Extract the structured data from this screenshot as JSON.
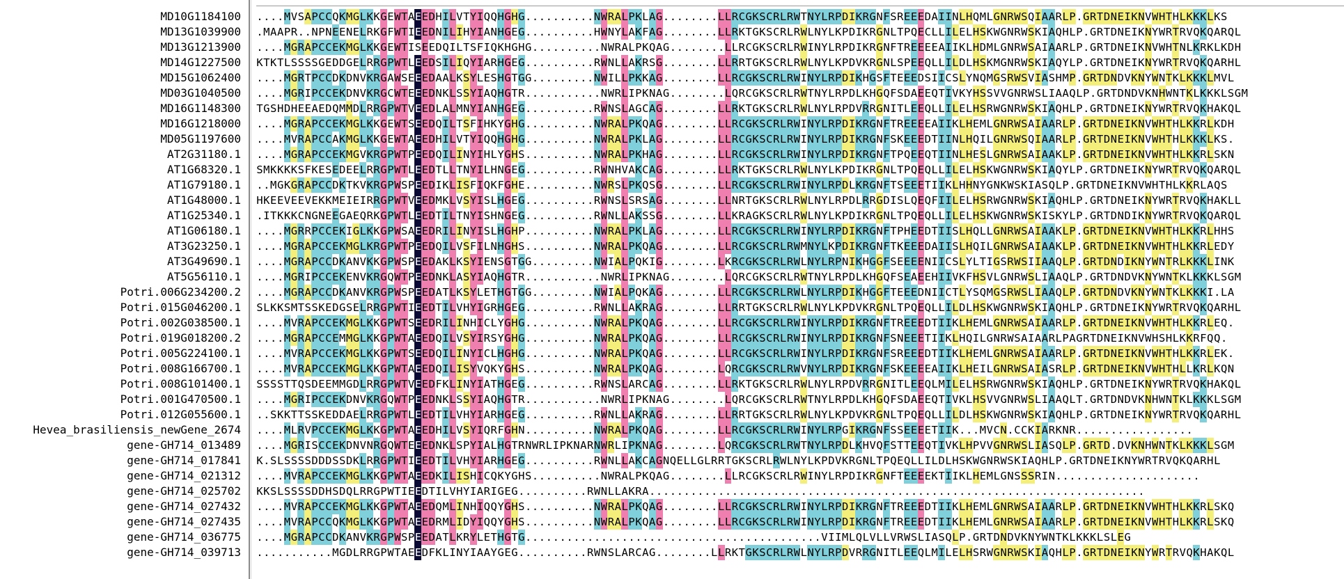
{
  "window": {
    "title": ""
  },
  "sequences": [
    {
      "name": "MD10G1184100",
      "seq": "....MVSAPCCQKMGLKKGEWTAEEDHILVTYIQQHGHG..........NWRALPKLAG........LLRCGKSCRLRWTNYLRPDIKRGNFSREEEDAIINLHQMLGNRWSQIAARLP.GRTDNEIKNVWHTHLKKKLKS"
    },
    {
      "name": "MD13G1039900",
      "seq": ".MAAPR..NPNEENELRKGFWTIEEDNILIHYIANHGEG..........HWNYLAKFAG........LLRKTGKSCRLRWLNYLKPDIKRGNLTPQECLLILELHSKWGNRWSKIAQHLP.GRTDNEIKNYWRTRVQKQARQL"
    },
    {
      "name": "MD13G1213900",
      "seq": "....MGRAPCCEKMGLKKGEWTISEEDQILTSFIQKHGHG..........NWRALPKQAG........LLRCGKSCRLRWINYLRPDIKRGNFTREEEEAIIKLHDMLGNRWSAIAARLP.GRTDNEIKNVWHTNLKRKLKDH"
    },
    {
      "name": "MD14G1227500",
      "seq": "KTKTLSSSSGEDDGELRRGPWTLEEDSILIQYIARHGEG..........RWNLLAKRSG........LLRRTGKSCRLRWLNYLKPDVKRGNLSPEEQLLILDLHSKMGNRWSKIAQYLP.GRTDNEIKNYWRTRVQKQARHL"
    },
    {
      "name": "MD15G1062400",
      "seq": "....MGRTPCCDKDNVKRGAWSEEEDAALKSYLESHGTGG.........NWILLPKKAG........LLRCGKSCRLRWINYLRPDIKHGSFTEEEDSIICSLYNQMGSRWSVIASHMP.GRTDNDVKNYWNTKLKKKLMVL"
    },
    {
      "name": "MD03G1040500",
      "seq": "....MGRIPCCEKDNVKRGCWTEEEDNKLSSYIAQHGTR...........NWRLIPKNAG........LQRCGKSCRLRWTNYLRPDLKHGQFSDAEEQTIVKYHSSVVGNRWSLIAAQLP.GRTDNDVKNHWNTKLKKKLSGM"
    },
    {
      "name": "MD16G1148300",
      "seq": "TGSHDHEEAEDQMMDLRRGPWTVEEDLALMNYIANHGEG..........RWNSLAGCAG........LLRKTGKSCRLRWLNYLRPDVRRGNITLEEQLLILELHSRWGNRWSKIAQHLP.GRTDNEIKNYWRTRVQKHAKQL"
    },
    {
      "name": "MD16G1218000",
      "seq": "....MGRAPCCEKMGLKKGEWTSEEDQILTSFIHKYGHG..........NWRALPKQAG........LLRCGKSCRLRWINYLRPDIKRGNFTREEEEAIIKLHEMLGNRWSAIAARLP.GRTDNEIKNVWHTHLKKRLKDH"
    },
    {
      "name": "MD05G1197600",
      "seq": "....MVRAPCCAKMGLKKGEWTAEEDHILVTYIQQHGHG..........NWRALPKLAG........LLRCGKSCRLRWINYLRPDIKRGNFSKEEEDTIINLHQILGNRWSQIAARLP.GRTDNEIKNVWHTHLKKKLKS."
    },
    {
      "name": "AT2G31180.1",
      "seq": "....MGRAPCCEKMGVKRGPWTPEEDQILINYIHLYGHS..........NWRALPKHAG........LLRCGKSCRLRWINYLRPDIKRGNFTPQEEQTIINLHESLGNRWSAIAAKLP.GRTDNEIKNVWHTHLKKRLSKN"
    },
    {
      "name": "AT1G68320.1",
      "seq": "SMKKKKSFKESEDEELRRGPWTLEEDTLLTNYILHNGEG..........RWNHVAKCAG........LLRKTGKSCRLRWLNYLKPDIKRGNLTPQEQLLILELHSKWGNRWSKIAQYLP.GRTDNEIKNYWRTRVQKQARQL"
    },
    {
      "name": "AT1G79180.1",
      "seq": "..MGKGRAPCCDKTKVKRGPWSPEEDIKLISFIQKFGHE..........NWRSLPKQSG........LLRCGKSCRLRWINYLRPDLKRGNFTSEEETIIKLHHNYGNKWSKIASQLP.GRTDNEIKNVWHTHLKKRLAQS"
    },
    {
      "name": "AT1G48000.1",
      "seq": "HKEEVEEVEKKMEIEIRRGPWTVEEDMKLVSYISLHGEG..........RWNSLSRSAG........LLNRTGKSCRLRWLNYLRPDLRRGDISLQEQFIILELHSRWGNRWSKIAQHLP.GRTDNEIKNYWRTRVQKHAKLL"
    },
    {
      "name": "AT1G25340.1",
      "seq": ".ITKKKCNGNEEGAEQRKGPWTLEEDTILTNYISHNGEG..........RWNLLAKSSG........LLKRAGKSCRLRWLNYLKPDIKRGNLTPQEQLLILELHSKWGNRWSKISKYLP.GRTDNDIKNYWRTRVQKQARQL"
    },
    {
      "name": "AT1G06180.1",
      "seq": "....MGRRPCCEKIGLKKGPWSAEEDRILINYISLHGHP..........NWRALPKLAG........LLRCGKSCRLRWINYLRPDIKRGNFTPHEEDTIISLHQLLGNRWSAIAAKLP.GRTDNEIKNVWHTHLKKRLHHS"
    },
    {
      "name": "AT3G23250.1",
      "seq": "....MGRAPCCEKMGLKRGPWTPEEDQILVSFILNHGHS..........NWRALPKQAG........LLRCGKSCRLRWMNYLKPDIKRGNFTKEEEDAIISLHQILGNRWSAIAAKLP.GRTDNEIKNVWHTHLKKRLEDY"
    },
    {
      "name": "AT3G49690.1",
      "seq": "....MGRAPCCDKANVKKGPWSPEEDAKLKSYIENSGTGG.........NWIALPQKIG........LKRCGKSCRLRWLNYLRPNIKHGGFSEEEENIICSLYLTIGSRWSIIAAQLP.GRTDNDIKNYWNTRLKKKLINK"
    },
    {
      "name": "AT5G56110.1",
      "seq": "....MGRIPCCEKENVKRGQWTPEEDNKLASYIAQHGTR...........NWRLIPKNAG........LQRCGKSCRLRWTNYLRPDLKHGQFSEAEEHIIVKFHSVLGNRWSLIAAQLP.GRTDNDVKNYWNTKLKKKLSGM"
    },
    {
      "name": "Potri.006G234200.2",
      "seq": "....MGRAPCCDKANVKRGPWSPEEDATLKSYLETHGTGG.........NWIALPQKAG........LLRCGKSCRLRWLNYLRPDIKHGGFTEEEDNIICTLYSQMGSRWSLIAAQLP.GRTDNDVKNYWNTKLKKKI.LA"
    },
    {
      "name": "Potri.015G046200.1",
      "seq": "SLKKSMTSSKEDGSELRRGPWTIEEDTILVHYIGRHGEG..........RWNLLAKRAG........LLRRTGKSCRLRWLNYLKPDVKRGNLTPQEQLLILDLHSKWGNRWSKIAQHLP.GRTDNEIKNYWRTRVQKQARHL"
    },
    {
      "name": "Potri.002G038500.1",
      "seq": "....MVRAPCCEKMGLKKGPWTSEEDRILINHICLYGHG..........NWRALPKQAG........LLRCGKSCRLRWINYLRPDIKRGNFTREEEDTIIKLHEMLGNRWSAIAARLP.GRTDNEIKNVWHTHLKKRLEQ."
    },
    {
      "name": "Potri.019G018200.2",
      "seq": "....MGRAPCCEMMGLKKGPWTAEEDQILVSYIRSYGHG..........NWRALPKQAG........LLRCGKSCRLRWINYLRPDIKRGNFSNEEETIIKLHQILGNRWSAIAARLPAGRTDNEIKNVWHSHLKKRFQQ."
    },
    {
      "name": "Potri.005G224100.1",
      "seq": "....MVRAPCCEKMGLKKGPWTSEEDQILINYICLHGHG..........NWRALPKQAG........LLRCGKSCRLRWINYLRPDIKRGNFSREEEDTIIKLHEMLGNRWSAIAARLP.GRTDNEIKNVWHTHLKKRLEK."
    },
    {
      "name": "Potri.008G166700.1",
      "seq": "....MVRAPCCEKMGLKKGPWTAEEDQILISYVQKYGHS..........NWRALPKQAG........LQRCGKSCRLRWVNYLRPDIKRGNFSKEEEEAIIKLHEILGNRWSAIASRLP.GRTDNEIKNVWHTHLLKRLKQN"
    },
    {
      "name": "Potri.008G101400.1",
      "seq": "SSSSTTQSDEEMMGDLRRGPWTVEEDFKLINYIATHGEG..........RWNSLARCAG........LLRKTGKSCRLRWLNYLRPDVRRGNITLEEQLMILELHSRWGNRWSKIAQHLP.GRTDNEIKNYWRTRVQKHAKQL"
    },
    {
      "name": "Potri.001G470500.1",
      "seq": "....MGRIPCCEKDNVKRGQWTPEEDNKLSSYIAQHGTR...........NWRLIPKNAG........LQRCGKSCRLRWTNYLRPDLKHGQFSDAEEQTIVKLHSVVGNRWSLIAAQLT.GRTDNDVKNHWNTKLKKKLSGM"
    },
    {
      "name": "Potri.012G055600.1",
      "seq": "..SKKTTSSKEDDAELRRGPWTLEEDTILVHYIARHGEG..........RWNLLAKRAG........LLRRTGKSCRLRWLNYLKPDVKRGNLTPQEQLLILDLHSKWGNRWSKIAQHLP.GRTDNEIKNYWRTRVQKQARHL"
    },
    {
      "name": "Hevea_brasiliensis_newGene_2674",
      "seq": "....MLRVPCCEKMGLKKGPWTAEEDHILVSYIQRFGHN..........NWRALPKQAG........LLRCGKSCRLRWINYLRPGIKRGNFSSEEEETIIK...MVCN.CCKIARKNR................."
    },
    {
      "name": "gene-GH714_013489",
      "seq": "....MGRISCCEKDNVNRGQWTEEEDNKLSPYIALHGTRNWRLIPKNARNWRLIPKNAG........LQRCGKSCRLRWTNYLRPDLKHVQFSTTEEQTIVKLHPVVGNRWSLIASQLP.GRTD.DVKNHWNTKLKKKLSGM"
    },
    {
      "name": "gene-GH714_017841",
      "seq": "K.SLSSSSDDDSSDKLRRGPWTIEEDTILVHYIARHGEG..........RWNLLAKCAGNQELLGLRRTGKSCRLRWLNYLKPDVKRGNLTPQEQLLILDLHSKWGNRWSKIAQHLP.GRTDNEIKNYWRTRVQKQARHL"
    },
    {
      "name": "gene-GH714_021312",
      "seq": "....MVRAPCCEKMGLKKGPWTAEEDKILISHICQKYGHS..........NWRALPKQAG........LLRCGKSCRLRWINYLRPDIKRGNFTEEEEKTIIKLHEMLGNSSSRIN....................."
    },
    {
      "name": "gene-GH714_025702",
      "seq": "KKSLSSSSDDHSDQLRRGPWTIEEDTILVHYIARIGEG..........RWNLLAKRA........................................................................"
    },
    {
      "name": "gene-GH714_027432",
      "seq": "....MVRAPCCEKMGLKKGPWTAEEDQMLINHIQQYGHS..........NWRALPKQAG........LLRCGKSCRLRWINYLRPDIKRGNFTREEEDTIIKLHEMLGNRWSAIAARLP.GRTDNEIKNVWHTHLKKRLSKQ"
    },
    {
      "name": "gene-GH714_027435",
      "seq": "....MVRAPCCQKMGLKKGPWTAEEDRMLIDYIQQYGHS..........NWRALPKQAG........LLRCGKSCRLRWINYLRPDIKRGNFTREEEDTIIKLHEMLGNRWSAIAARLP.GRTDNEIKNVWHTHLKKRLSKQ"
    },
    {
      "name": "gene-GH714_036775",
      "seq": "....MGRAPCCDKANVKRGPWSPEEDATLKRYLETHGTG...........................................VIIMLQLVLLVRWSLIASQLP.GRTDNDVKNYWNTKLKKKLSLEG"
    },
    {
      "name": "gene-GH714_039713",
      "seq": "...........MGDLRRGPWTAEEDFKLINYIAAYGEG..........RWNSLARCAG........LLRKTGKSCRLRWLNYLRPDVRRGNITLEEQLMILELHSRWGNRWSKIAQHLP.GRTDNEIKNYWRTRVQKHAKQL"
    }
  ],
  "residue_colors": {
    "identical": "#0a0a35",
    "high": "#ee7fae",
    "medium": "#7fd0da",
    "low": "#f4ef7a"
  }
}
